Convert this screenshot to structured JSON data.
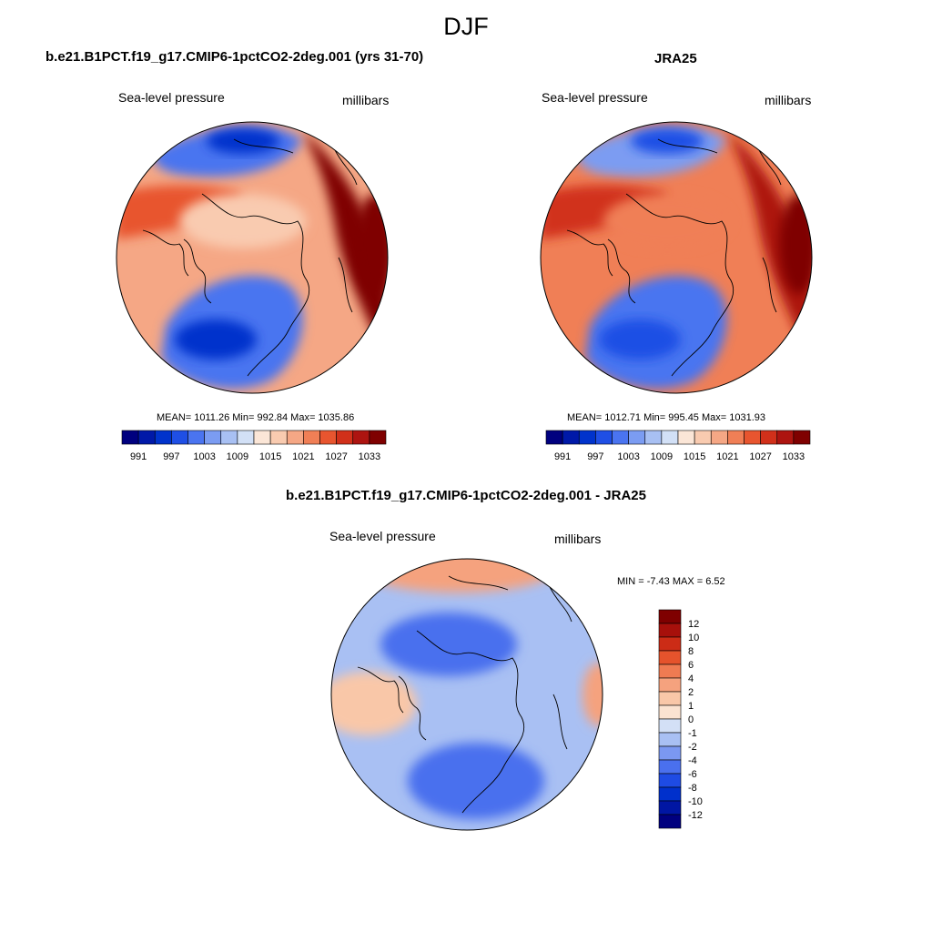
{
  "page": {
    "title": "DJF"
  },
  "colors": {
    "abs_scale": [
      "#00007f",
      "#0019a8",
      "#0033cc",
      "#1f4fe5",
      "#4a74f0",
      "#7b9cf2",
      "#a8c0f3",
      "#d2e0f6",
      "#fbe6d7",
      "#f9cbb0",
      "#f5a785",
      "#f07f56",
      "#e8552f",
      "#d1301a",
      "#ad1410",
      "#7f0000"
    ],
    "diff_scale": [
      "#00007f",
      "#0016a3",
      "#0030cc",
      "#1e4be4",
      "#4a70ee",
      "#7b98f1",
      "#a9c0f3",
      "#d3e0f6",
      "#fbe3d1",
      "#f9c7a8",
      "#f5a27e",
      "#ef7b52",
      "#e5532c",
      "#cc2c16",
      "#a7100b",
      "#7f0000"
    ]
  },
  "chart_data": [
    {
      "type": "heatmap",
      "title": "b.e21.B1PCT.f19_g17.CMIP6-1pctCO2-2deg.001 (yrs 31-70)",
      "left_label": "Sea-level pressure",
      "right_label": "millibars",
      "stats": {
        "text": "MEAN= 1011.26  Min= 992.84  Max= 1035.86",
        "mean": 1011.26,
        "min": 992.84,
        "max": 1035.86
      },
      "colorbar_ticks": [
        "991",
        "997",
        "1003",
        "1009",
        "1015",
        "1021",
        "1027",
        "1033"
      ],
      "levels": [
        988,
        991,
        994,
        997,
        1000,
        1003,
        1006,
        1009,
        1012,
        1015,
        1018,
        1021,
        1024,
        1027,
        1030,
        1033
      ],
      "regions": [
        {
          "name": "background",
          "value": 1016
        },
        {
          "name": "pacific-high-east",
          "value": 1030
        },
        {
          "name": "pacific-high-core",
          "value": 1034
        },
        {
          "name": "aleutian-low",
          "value": 997
        },
        {
          "name": "aleutian-low-core",
          "value": 993
        },
        {
          "name": "icelandic-low",
          "value": 998
        },
        {
          "name": "icelandic-low-core",
          "value": 993
        },
        {
          "name": "siberian-high",
          "value": 1022
        },
        {
          "name": "arctic-ridge",
          "value": 1014
        }
      ]
    },
    {
      "type": "heatmap",
      "title": "JRA25",
      "left_label": "Sea-level pressure",
      "right_label": "millibars",
      "stats": {
        "text": "MEAN= 1012.71  Min= 995.45  Max= 1031.93",
        "mean": 1012.71,
        "min": 995.45,
        "max": 1031.93
      },
      "colorbar_ticks": [
        "991",
        "997",
        "1003",
        "1009",
        "1015",
        "1021",
        "1027",
        "1033"
      ],
      "levels": [
        988,
        991,
        994,
        997,
        1000,
        1003,
        1006,
        1009,
        1012,
        1015,
        1018,
        1021,
        1024,
        1027,
        1030,
        1033
      ],
      "regions": [
        {
          "name": "background",
          "value": 1018
        },
        {
          "name": "pacific-high-east",
          "value": 1028
        },
        {
          "name": "pacific-high-core",
          "value": 1031
        },
        {
          "name": "aleutian-low",
          "value": 999
        },
        {
          "name": "aleutian-low-core",
          "value": 996
        },
        {
          "name": "icelandic-low",
          "value": 1000
        },
        {
          "name": "icelandic-low-core",
          "value": 996
        },
        {
          "name": "siberian-high",
          "value": 1024
        },
        {
          "name": "arctic-ridge",
          "value": 1019
        }
      ]
    },
    {
      "type": "heatmap",
      "title": "b.e21.B1PCT.f19_g17.CMIP6-1pctCO2-2deg.001 - JRA25",
      "left_label": "Sea-level pressure",
      "right_label": "millibars",
      "stats": {
        "text": "MIN =  -7.43 MAX =   6.52",
        "min": -7.43,
        "max": 6.52
      },
      "colorbar_ticks": [
        "12",
        "10",
        "8",
        "6",
        "4",
        "2",
        "1",
        "0",
        "-1",
        "-2",
        "-4",
        "-6",
        "-8",
        "-10",
        "-12"
      ],
      "levels": [
        -12,
        -10,
        -8,
        -6,
        -4,
        -2,
        -1,
        0,
        1,
        2,
        4,
        6,
        8,
        10,
        12
      ],
      "regions": [
        {
          "name": "background",
          "value": -1.5
        },
        {
          "name": "north-positive",
          "value": 2.5
        },
        {
          "name": "arctic-negative",
          "value": -5
        },
        {
          "name": "atlantic-negative",
          "value": -6
        },
        {
          "name": "west-positive",
          "value": 1.5
        },
        {
          "name": "east-positive",
          "value": 3
        }
      ]
    }
  ]
}
